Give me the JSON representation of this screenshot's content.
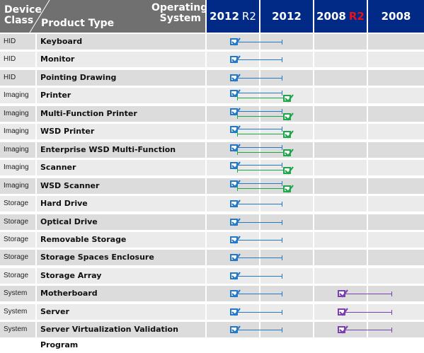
{
  "header": {
    "device_class": "Device Class",
    "product_type": "Product Type",
    "operating_system": "Operating System",
    "os_columns": [
      {
        "label": "2012",
        "suffix": "R2"
      },
      {
        "label": "2012",
        "suffix": ""
      },
      {
        "label": "2008",
        "suffix": "R2"
      },
      {
        "label": "2008",
        "suffix": ""
      }
    ]
  },
  "colors": {
    "header_gray": "#707070",
    "header_blue": "#002a86",
    "r2_red": "#e8101a",
    "blue_mark": "#2478c8",
    "green_mark": "#1ea64a",
    "purple_mark": "#7a3fb0"
  },
  "rows": [
    {
      "device_class": "HID",
      "product_type": "Keyboard",
      "support": "2012"
    },
    {
      "device_class": "HID",
      "product_type": "Monitor",
      "support": "2012"
    },
    {
      "device_class": "HID",
      "product_type": "Pointing Drawing",
      "support": "2012"
    },
    {
      "device_class": "Imaging",
      "product_type": "Printer",
      "support": "2012+back"
    },
    {
      "device_class": "Imaging",
      "product_type": "Multi-Function Printer",
      "support": "2012+back"
    },
    {
      "device_class": "Imaging",
      "product_type": "WSD Printer",
      "support": "2012+back"
    },
    {
      "device_class": "Imaging",
      "product_type": "Enterprise WSD Multi-Function Printer",
      "support": "2012+back"
    },
    {
      "device_class": "Imaging",
      "product_type": "Scanner",
      "support": "2012+back"
    },
    {
      "device_class": "Imaging",
      "product_type": "WSD Scanner",
      "support": "2012+back"
    },
    {
      "device_class": "Storage",
      "product_type": "Hard Drive",
      "support": "2012"
    },
    {
      "device_class": "Storage",
      "product_type": "Optical Drive",
      "support": "2012"
    },
    {
      "device_class": "Storage",
      "product_type": "Removable Storage",
      "support": "2012"
    },
    {
      "device_class": "Storage",
      "product_type": "Storage Spaces Enclosure",
      "support": "2012"
    },
    {
      "device_class": "Storage",
      "product_type": "Storage Array",
      "support": "2012"
    },
    {
      "device_class": "System",
      "product_type": "Motherboard",
      "support": "2012+2008"
    },
    {
      "device_class": "System",
      "product_type": "Server",
      "support": "2012+2008"
    },
    {
      "device_class": "System",
      "product_type": "Server Virtualization Validation Program",
      "support": "2012+2008"
    }
  ]
}
